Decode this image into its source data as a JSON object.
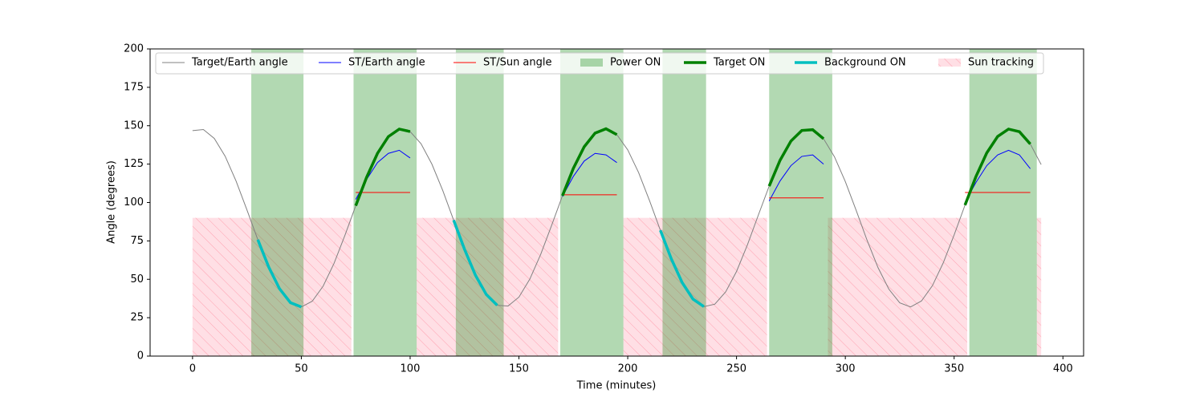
{
  "chart_data": {
    "type": "line",
    "x_label": "Time (minutes)",
    "y_label": "Angle (degrees)",
    "x": [
      0,
      5,
      10,
      15,
      20,
      25,
      30,
      35,
      40,
      45,
      50,
      55,
      60,
      65,
      70,
      75,
      80,
      85,
      90,
      95,
      100,
      105,
      110,
      115,
      120,
      125,
      130,
      135,
      140,
      145,
      150,
      155,
      160,
      165,
      170,
      175,
      180,
      185,
      190,
      195,
      200,
      205,
      210,
      215,
      220,
      225,
      230,
      235,
      240,
      245,
      250,
      255,
      260,
      265,
      270,
      275,
      280,
      285,
      290,
      295,
      300,
      305,
      310,
      315,
      320,
      325,
      330,
      335,
      340,
      345,
      350,
      355,
      360,
      365,
      370,
      375,
      380,
      385,
      390
    ],
    "xlim": [
      -19.5,
      409.5
    ],
    "xticks": [
      0,
      50,
      100,
      150,
      200,
      250,
      300,
      350,
      400
    ],
    "ylim": [
      0,
      200
    ],
    "yticks": [
      0,
      25,
      50,
      75,
      100,
      125,
      150,
      175,
      200
    ],
    "legend": "upper left",
    "series": [
      {
        "name": "Target/Earth angle",
        "color": "#808080",
        "linewidth": 1,
        "values": [
          146.8,
          147.5,
          141.7,
          130.1,
          114.0,
          95.2,
          75.8,
          58.0,
          43.8,
          34.8,
          32.0,
          35.7,
          45.5,
          60.3,
          78.5,
          97.9,
          116.4,
          132.0,
          142.9,
          147.8,
          146.2,
          138.3,
          125.0,
          107.8,
          88.5,
          69.5,
          52.7,
          40.1,
          33.1,
          32.6,
          38.4,
          50.1,
          66.2,
          85.0,
          104.4,
          122.2,
          136.3,
          145.2,
          148.0,
          144.2,
          134.3,
          119.5,
          101.3,
          81.9,
          63.4,
          47.9,
          37.1,
          32.2,
          33.8,
          41.8,
          55.1,
          72.4,
          91.7,
          110.7,
          127.5,
          140.0,
          146.9,
          147.4,
          141.5,
          129.8,
          113.6,
          94.8,
          75.4,
          57.7,
          43.6,
          34.7,
          32.0,
          35.9,
          45.8,
          60.7,
          78.9,
          98.3,
          116.8,
          132.3,
          143.0,
          147.8,
          146.1,
          138.1,
          124.7
        ]
      },
      {
        "name": "ST/Earth angle",
        "color": "#0000ff",
        "linewidth": 1,
        "values": [
          null,
          null,
          null,
          null,
          null,
          null,
          null,
          null,
          null,
          null,
          null,
          null,
          null,
          null,
          null,
          102,
          115,
          126,
          132,
          134,
          129,
          null,
          null,
          null,
          null,
          null,
          null,
          null,
          null,
          null,
          null,
          null,
          null,
          null,
          104,
          117,
          127,
          132,
          131,
          126,
          null,
          null,
          null,
          null,
          null,
          null,
          null,
          null,
          null,
          null,
          null,
          null,
          null,
          101,
          114,
          124,
          130,
          131,
          125,
          null,
          null,
          null,
          null,
          null,
          null,
          null,
          null,
          null,
          null,
          null,
          null,
          100,
          113,
          124,
          131,
          134,
          131,
          122,
          null
        ]
      },
      {
        "name": "ST/Sun angle",
        "color": "#ff0000",
        "linewidth": 1,
        "values": [
          null,
          null,
          null,
          null,
          null,
          null,
          null,
          null,
          null,
          null,
          null,
          null,
          null,
          null,
          null,
          106.5,
          106.5,
          106.5,
          106.5,
          106.5,
          106.5,
          null,
          null,
          null,
          null,
          null,
          null,
          null,
          null,
          null,
          null,
          null,
          null,
          null,
          105,
          105,
          105,
          105,
          105,
          105,
          null,
          null,
          null,
          null,
          null,
          null,
          null,
          null,
          null,
          null,
          null,
          null,
          null,
          103,
          103,
          103,
          103,
          103,
          103,
          null,
          null,
          null,
          null,
          null,
          null,
          null,
          null,
          null,
          null,
          null,
          null,
          106.5,
          106.5,
          106.5,
          106.5,
          106.5,
          106.5,
          106.5,
          null
        ]
      },
      {
        "name": "Target ON",
        "color": "#008000",
        "linewidth": 3.5,
        "values": [
          null,
          null,
          null,
          null,
          null,
          null,
          null,
          null,
          null,
          null,
          null,
          null,
          null,
          null,
          null,
          97.9,
          116.4,
          132.0,
          142.9,
          147.8,
          146.2,
          null,
          null,
          null,
          null,
          null,
          null,
          null,
          null,
          null,
          null,
          null,
          null,
          null,
          104.4,
          122.2,
          136.3,
          145.2,
          148.0,
          144.2,
          null,
          null,
          null,
          null,
          null,
          null,
          null,
          null,
          null,
          null,
          null,
          null,
          null,
          110.7,
          127.5,
          140.0,
          146.9,
          147.4,
          141.5,
          null,
          null,
          null,
          null,
          null,
          null,
          null,
          null,
          null,
          null,
          null,
          null,
          98.3,
          116.8,
          132.3,
          143.0,
          147.8,
          146.1,
          138.1,
          null
        ]
      },
      {
        "name": "Background ON",
        "color": "#00bfbf",
        "linewidth": 3.5,
        "values": [
          null,
          null,
          null,
          null,
          null,
          null,
          75.8,
          58.0,
          43.8,
          34.8,
          32.0,
          null,
          null,
          null,
          null,
          null,
          null,
          null,
          null,
          null,
          null,
          null,
          null,
          null,
          88.5,
          69.5,
          52.7,
          40.1,
          33.1,
          null,
          null,
          null,
          null,
          null,
          null,
          null,
          null,
          null,
          null,
          null,
          null,
          null,
          null,
          81.9,
          63.4,
          47.9,
          37.1,
          32.2,
          null,
          null,
          null,
          null,
          null,
          null,
          null,
          null,
          null,
          null,
          null,
          null,
          null,
          null,
          null,
          null,
          null,
          null,
          null,
          null,
          null,
          null,
          null,
          null,
          null,
          null,
          null,
          null,
          null,
          null,
          null
        ]
      }
    ],
    "bands": [
      {
        "name": "Power ON",
        "color": "#008000",
        "ranges": [
          [
            27,
            51
          ],
          [
            74,
            103
          ],
          [
            121,
            143
          ],
          [
            169,
            198
          ],
          [
            216,
            236
          ],
          [
            265,
            294
          ],
          [
            357,
            388
          ]
        ]
      },
      {
        "name": "Sun tracking",
        "color": "#ffc0cb",
        "hatch": true,
        "ymax": 90,
        "ranges": [
          [
            0,
            73
          ],
          [
            103,
            168
          ],
          [
            198,
            264
          ],
          [
            292,
            356
          ],
          [
            388,
            390
          ]
        ]
      }
    ]
  }
}
